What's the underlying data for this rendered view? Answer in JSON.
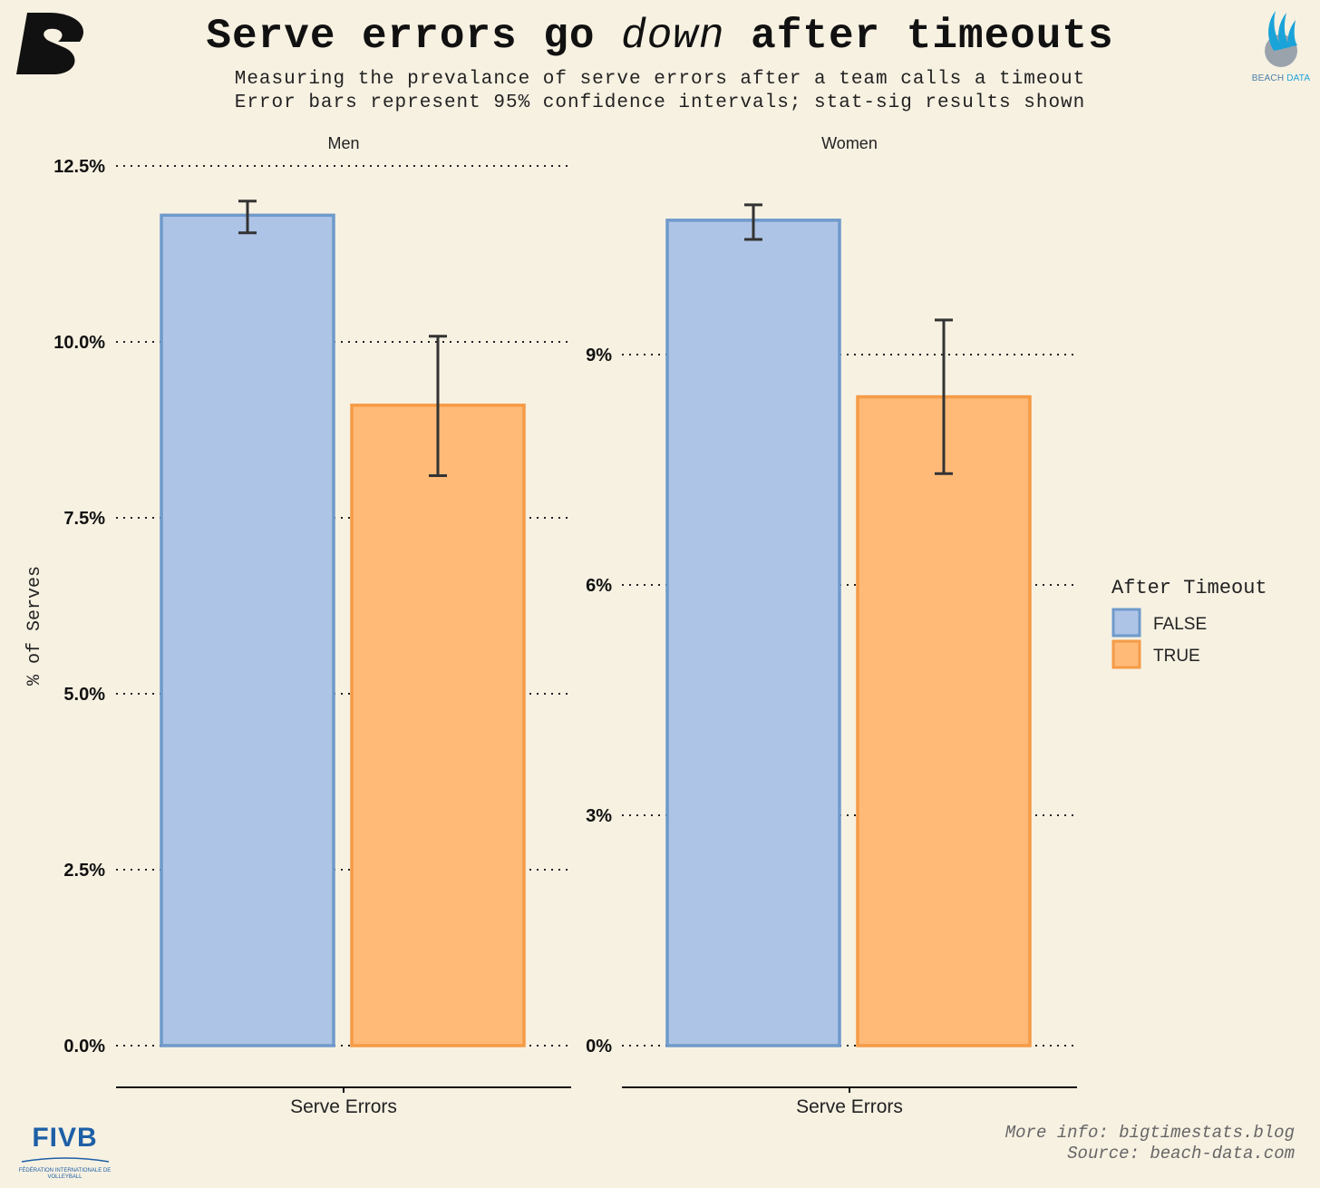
{
  "title": {
    "before": "Serve errors go",
    "emphasis": "down",
    "after": "after timeouts"
  },
  "subtitle_lines": [
    "Measuring the prevalance of serve errors after a team calls a timeout",
    "Error bars represent 95% confidence intervals; stat-sig results shown"
  ],
  "footer": {
    "more_info": "More info: bigtimestats.blog",
    "source": "Source: beach-data.com"
  },
  "logos": {
    "right_text_1": "BEACH",
    "right_text_2": "DATA",
    "fivb_word": "FIVB",
    "fivb_small": "FÉDÉRATION INTERNATIONALE DE VOLLEYBALL"
  },
  "colors": {
    "background": "#f7f1e2",
    "false_fill": "#aec4e6",
    "false_stroke": "#6f9acb",
    "true_fill": "#ffba78",
    "true_stroke": "#f59b46",
    "errorbar": "#333333"
  },
  "chart_data": [
    {
      "type": "bar",
      "panel": "Men",
      "categories": [
        "Serve Errors"
      ],
      "xlabel": "Serve Errors",
      "ylabel": "% of Serves",
      "ylim": [
        0,
        12.5
      ],
      "yticks": [
        0,
        2.5,
        5,
        7.5,
        10,
        12.5
      ],
      "ytick_labels": [
        "0.0%",
        "2.5%",
        "5.0%",
        "7.5%",
        "10.0%",
        "12.5%"
      ],
      "grid": "horizontal dotted",
      "series": [
        {
          "name": "FALSE",
          "values": [
            11.8
          ],
          "ci_low": [
            11.55
          ],
          "ci_high": [
            12.0
          ]
        },
        {
          "name": "TRUE",
          "values": [
            9.1
          ],
          "ci_low": [
            8.1
          ],
          "ci_high": [
            10.08
          ]
        }
      ]
    },
    {
      "type": "bar",
      "panel": "Women",
      "categories": [
        "Serve Errors"
      ],
      "xlabel": "Serve Errors",
      "ylabel": "% of Serves",
      "ylim": [
        0,
        11.5
      ],
      "yticks": [
        0,
        3,
        6,
        9
      ],
      "ytick_labels": [
        "0%",
        "3%",
        "6%",
        "9%"
      ],
      "grid": "horizontal dotted",
      "series": [
        {
          "name": "FALSE",
          "values": [
            10.75
          ],
          "ci_low": [
            10.5
          ],
          "ci_high": [
            10.95
          ]
        },
        {
          "name": "TRUE",
          "values": [
            8.45
          ],
          "ci_low": [
            7.45
          ],
          "ci_high": [
            9.45
          ]
        }
      ]
    }
  ],
  "legend": {
    "title": "After Timeout",
    "placement": "right",
    "items": [
      "FALSE",
      "TRUE"
    ]
  }
}
